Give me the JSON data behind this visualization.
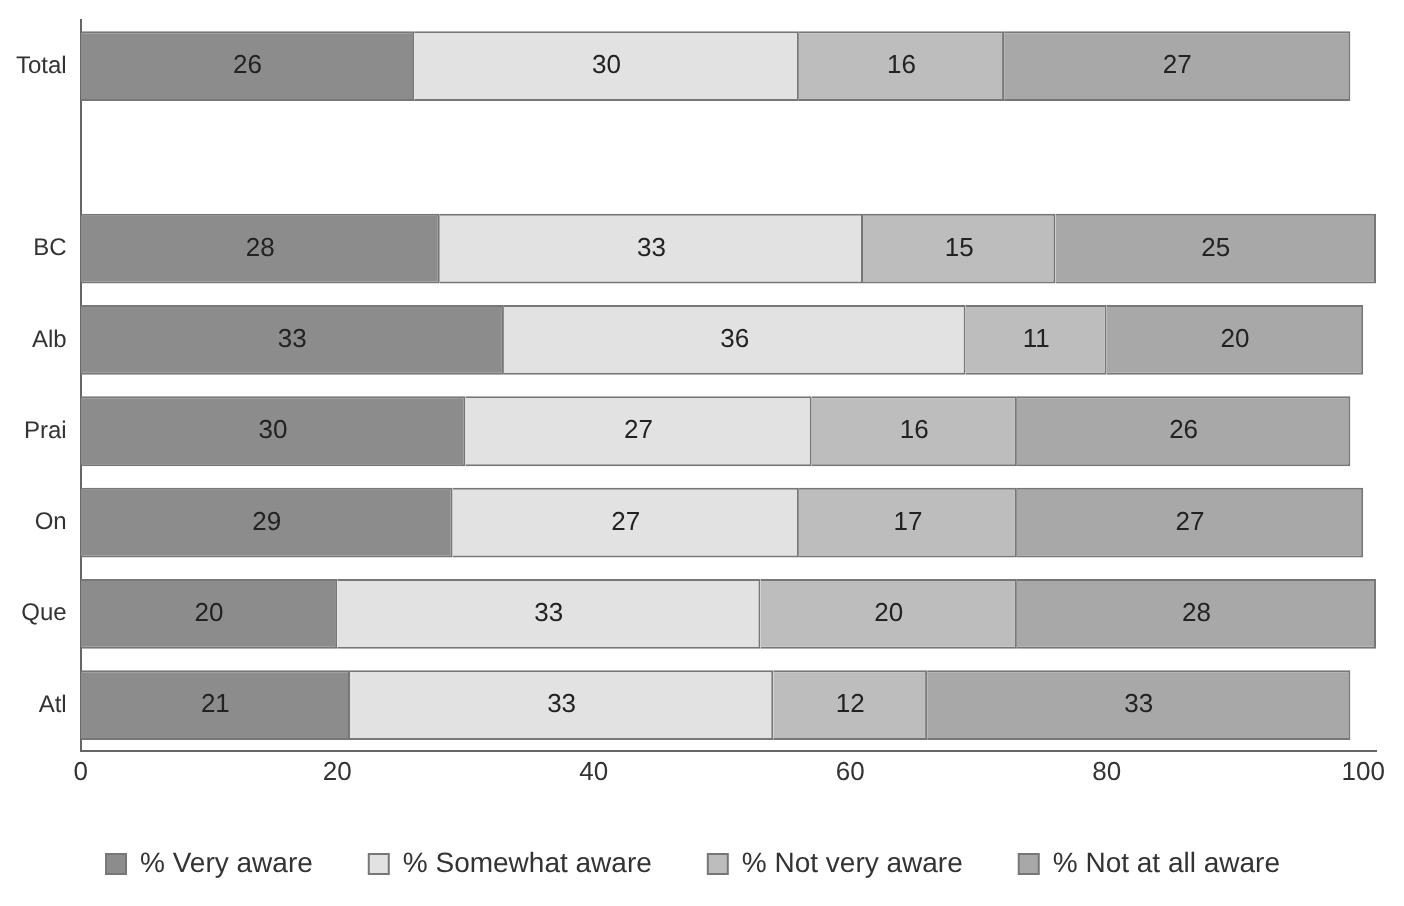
{
  "chart_data": {
    "type": "bar",
    "orientation": "horizontal",
    "stacked": true,
    "categories": [
      "Total",
      null,
      "BC",
      "Alb",
      "Prai",
      "On",
      "Que",
      "Atl"
    ],
    "series": [
      {
        "name": "% Very aware",
        "color": "#8c8c8c",
        "values": [
          26,
          null,
          28,
          33,
          30,
          29,
          20,
          21
        ]
      },
      {
        "name": "% Somewhat aware",
        "color": "#e2e2e2",
        "values": [
          30,
          null,
          33,
          36,
          27,
          27,
          33,
          33
        ]
      },
      {
        "name": "% Not very aware",
        "color": "#bdbdbd",
        "values": [
          16,
          null,
          15,
          11,
          16,
          17,
          20,
          12
        ]
      },
      {
        "name": "% Not at all aware",
        "color": "#a8a8a8",
        "values": [
          27,
          null,
          25,
          20,
          26,
          27,
          28,
          33
        ]
      }
    ],
    "xlim": [
      0,
      101
    ],
    "xticks": [
      0,
      20,
      40,
      60,
      80,
      100
    ],
    "data_labels": true,
    "legend": "bottom",
    "grid": false
  }
}
